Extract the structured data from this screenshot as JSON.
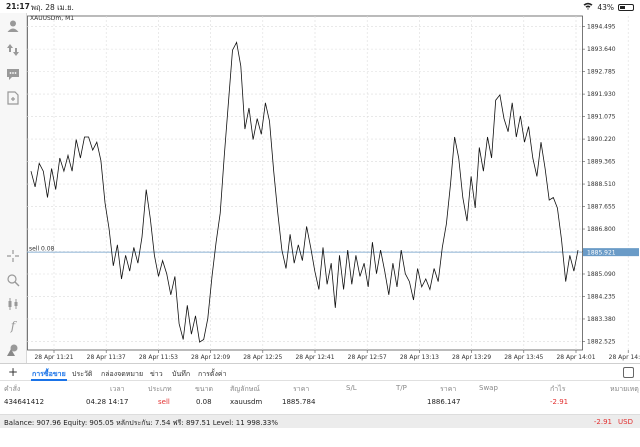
{
  "status": {
    "time": "21:17",
    "date": "พฤ. 28 เม.ย.",
    "battery": "43%",
    "battery_level": 0.43
  },
  "chart": {
    "symbol_label": "XAUUSDm, M1",
    "price_label": "1885.921",
    "sell_label": "sell 0.08",
    "y_ticks": [
      "1894.495",
      "1893.640",
      "1892.785",
      "1891.930",
      "1891.075",
      "1890.220",
      "1889.365",
      "1888.510",
      "1887.655",
      "1886.800",
      "1885.945",
      "1885.090",
      "1884.235",
      "1883.380",
      "1882.525"
    ],
    "x_ticks": [
      "28 Apr 11:21",
      "28 Apr 11:37",
      "28 Apr 11:53",
      "28 Apr 12:09",
      "28 Apr 12:25",
      "28 Apr 12:41",
      "28 Apr 12:57",
      "28 Apr 13:13",
      "28 Apr 13:29",
      "28 Apr 13:45",
      "28 Apr 14:01",
      "28 Apr 14:17"
    ]
  },
  "chart_data": {
    "type": "line",
    "title": "XAUUSDm, M1",
    "xlabel": "",
    "ylabel": "",
    "ylim": [
      1882.2,
      1894.9
    ],
    "x_range": [
      "28 Apr 11:15",
      "28 Apr 14:20"
    ],
    "current_price_line": 1885.921,
    "series": [
      {
        "values": [
          1889.0,
          1888.4,
          1889.3,
          1889.0,
          1888.0,
          1889.1,
          1888.3,
          1889.5,
          1889.0,
          1889.6,
          1889.0,
          1890.2,
          1889.5,
          1890.3,
          1890.3,
          1889.8,
          1890.1,
          1889.4,
          1887.8,
          1886.8,
          1885.4,
          1886.2,
          1884.9,
          1885.8,
          1885.2,
          1886.1,
          1885.5,
          1886.5,
          1888.3,
          1887.2,
          1885.8,
          1885.0,
          1885.6,
          1885.1,
          1884.3,
          1885.0,
          1883.2,
          1882.6,
          1883.9,
          1882.8,
          1883.5,
          1882.5,
          1882.6,
          1883.4,
          1885.0,
          1886.3,
          1887.4,
          1889.6,
          1891.6,
          1893.6,
          1893.9,
          1893.0,
          1890.6,
          1891.4,
          1890.2,
          1891.0,
          1890.4,
          1891.6,
          1890.9,
          1889.0,
          1887.4,
          1886.0,
          1885.3,
          1886.6,
          1885.5,
          1886.2,
          1885.6,
          1886.9,
          1886.1,
          1885.2,
          1884.5,
          1886.1,
          1884.7,
          1885.5,
          1883.8,
          1885.8,
          1884.5,
          1886.0,
          1884.7,
          1885.8,
          1885.0,
          1885.5,
          1884.6,
          1886.3,
          1885.1,
          1886.0,
          1885.2,
          1884.3,
          1885.5,
          1884.6,
          1886.0,
          1885.1,
          1884.8,
          1884.1,
          1885.3,
          1884.6,
          1884.9,
          1884.5,
          1885.3,
          1884.8,
          1886.1,
          1887.0,
          1888.5,
          1890.3,
          1889.5,
          1888.0,
          1887.1,
          1888.8,
          1887.6,
          1889.9,
          1889.0,
          1890.3,
          1889.5,
          1891.7,
          1891.9,
          1891.0,
          1890.5,
          1891.6,
          1890.3,
          1891.1,
          1890.1,
          1890.7,
          1889.5,
          1888.8,
          1890.1,
          1889.1,
          1887.9,
          1888.0,
          1887.6,
          1886.4,
          1884.8,
          1885.8,
          1885.2,
          1886.0
        ]
      }
    ]
  },
  "tabs": {
    "items": [
      "การซื้อขาย",
      "ประวัติ",
      "กล่องจดหมาย",
      "ข่าว",
      "บันทึก",
      "การตั้งค่า"
    ],
    "active_index": 0
  },
  "table": {
    "headers": [
      "คำสั่ง",
      "เวลา",
      "ประเภท",
      "ขนาด",
      "สัญลักษณ์",
      "ราคา",
      "S/L",
      "T/P",
      "ราคา",
      "Swap",
      "กำไร",
      "หมายเหตุ"
    ],
    "rows": [
      [
        "434641412",
        "04.28 14:17",
        "sell",
        "0.08",
        "xauusdm",
        "1885.784",
        "",
        "",
        "1886.147",
        "",
        "-2.91",
        ""
      ]
    ]
  },
  "footer": {
    "summary": "Balance: 907.96 Equity: 905.05 หลักประกัน: 7.54 ฟรี: 897.51 Level: 11 998.33%",
    "total": "-2.91",
    "currency": "USD"
  },
  "toolbar": {
    "timeframe": "M1"
  },
  "colors": {
    "accent": "#1a73e8",
    "loss": "#e23030",
    "price_line": "#6a9bc7"
  }
}
